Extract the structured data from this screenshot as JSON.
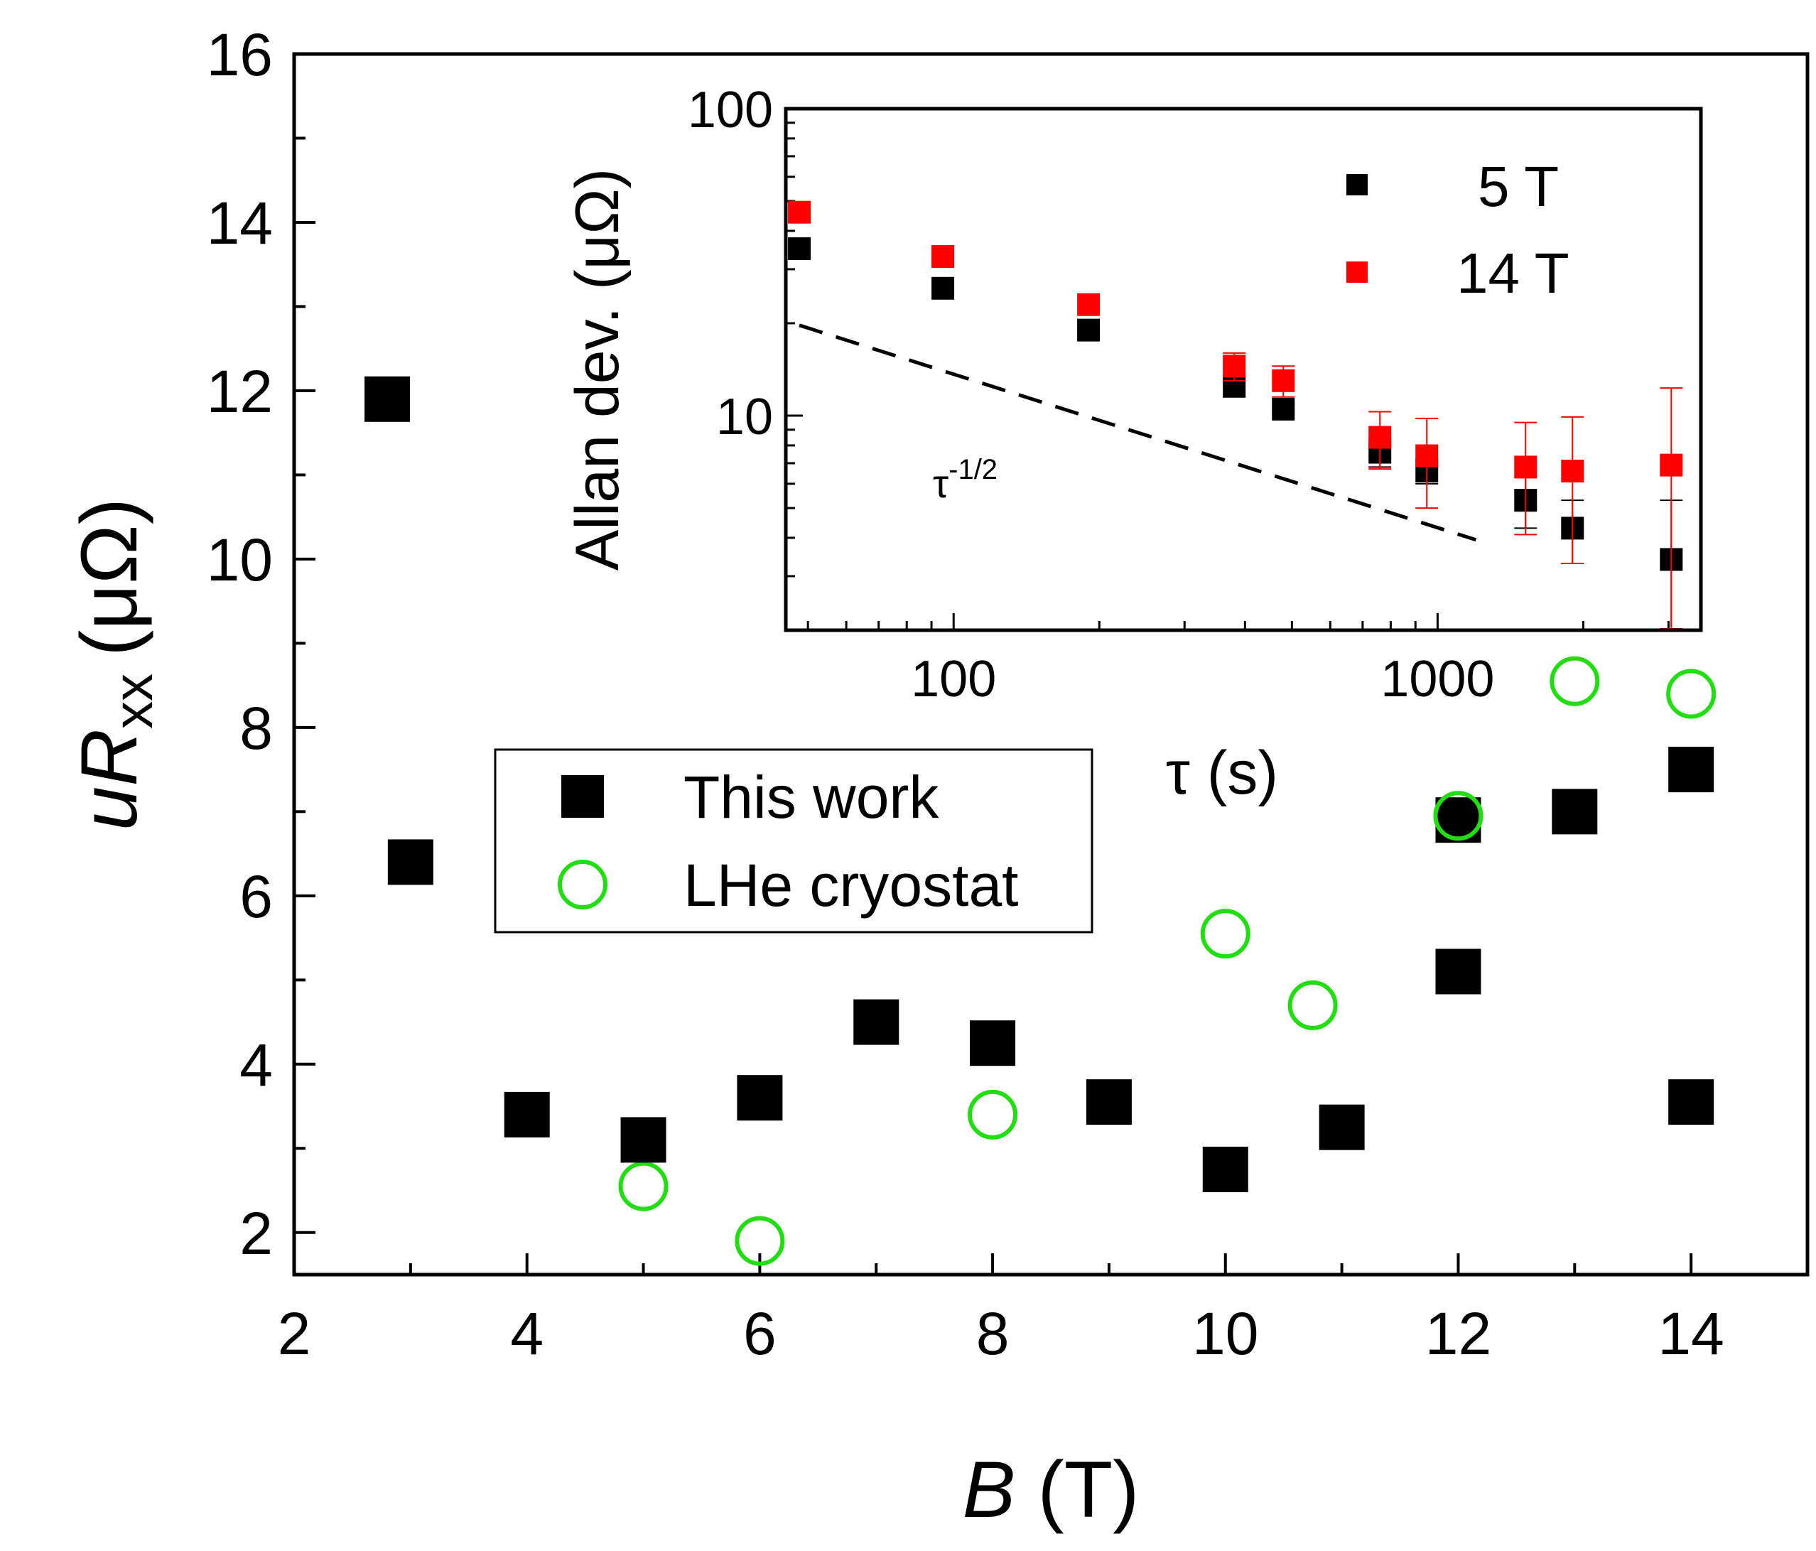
{
  "chart_data": [
    {
      "id": "main",
      "type": "scatter",
      "title": "",
      "xlabel": "B",
      "xlabel_unit": "(T)",
      "ylabel_main": "uR",
      "ylabel_sub": "xx",
      "ylabel_unit": "(μΩ)",
      "xlim": [
        2,
        15
      ],
      "ylim": [
        1.5,
        16
      ],
      "xticks": [
        2,
        4,
        6,
        8,
        10,
        12,
        14
      ],
      "yticks": [
        2,
        4,
        6,
        8,
        10,
        12,
        14,
        16
      ],
      "grid": false,
      "legend_position": "center-left",
      "series": [
        {
          "name": "This work",
          "marker": "filled-square",
          "color": "#000000",
          "points": [
            [
              2.8,
              11.9
            ],
            [
              3.0,
              6.4
            ],
            [
              4.0,
              3.4
            ],
            [
              5.0,
              3.1
            ],
            [
              6.0,
              3.6
            ],
            [
              7.0,
              4.5
            ],
            [
              8.0,
              4.25
            ],
            [
              9.0,
              3.55
            ],
            [
              10.0,
              2.75
            ],
            [
              11.0,
              3.25
            ],
            [
              12.0,
              5.1
            ],
            [
              12.0,
              6.9
            ],
            [
              13.0,
              7.0
            ],
            [
              14.0,
              7.5
            ],
            [
              14.0,
              3.55
            ]
          ]
        },
        {
          "name": "LHe cryostat",
          "marker": "open-circle",
          "color": "#22dd11",
          "points": [
            [
              5.0,
              2.55
            ],
            [
              6.0,
              1.9
            ],
            [
              8.0,
              3.4
            ],
            [
              10.0,
              5.55
            ],
            [
              10.75,
              4.7
            ],
            [
              12.0,
              6.95
            ],
            [
              13.0,
              8.55
            ],
            [
              14.0,
              8.4
            ]
          ]
        }
      ]
    },
    {
      "id": "inset",
      "type": "scatter",
      "scale": "log-log",
      "xlabel": "τ (s)",
      "ylabel": "Allan dev. (μΩ)",
      "xlim": [
        45,
        3500
      ],
      "ylim": [
        2,
        100
      ],
      "xticks": [
        100,
        1000
      ],
      "yticks": [
        10,
        100
      ],
      "grid": false,
      "legend_position": "top-right",
      "series": [
        {
          "name": "5 T",
          "marker": "filled-square",
          "color": "#000000",
          "points": [
            {
              "x": 48,
              "y": 35,
              "err": 0
            },
            {
              "x": 95,
              "y": 26,
              "err": 0
            },
            {
              "x": 190,
              "y": 19,
              "err": 0
            },
            {
              "x": 380,
              "y": 12.5,
              "err": 1
            },
            {
              "x": 480,
              "y": 10.5,
              "err": 0.4
            },
            {
              "x": 760,
              "y": 7.6,
              "err": 0.8
            },
            {
              "x": 950,
              "y": 6.6,
              "err": 0.6
            },
            {
              "x": 1520,
              "y": 5.3,
              "err": 1.0
            },
            {
              "x": 1900,
              "y": 4.3,
              "err": 1.0
            },
            {
              "x": 3040,
              "y": 3.4,
              "err": 1.9
            }
          ]
        },
        {
          "name": "14 T",
          "marker": "filled-square",
          "color": "#ff0000",
          "points": [
            {
              "x": 48,
              "y": 46,
              "err": 0
            },
            {
              "x": 95,
              "y": 33,
              "err": 0
            },
            {
              "x": 190,
              "y": 23,
              "err": 0
            },
            {
              "x": 380,
              "y": 14.5,
              "err": 1.5
            },
            {
              "x": 480,
              "y": 13,
              "err": 1.5
            },
            {
              "x": 760,
              "y": 8.5,
              "err": 1.8
            },
            {
              "x": 950,
              "y": 7.4,
              "err": 2.4
            },
            {
              "x": 1520,
              "y": 6.8,
              "err": 2.7
            },
            {
              "x": 1900,
              "y": 6.6,
              "err": 3.3
            },
            {
              "x": 3040,
              "y": 6.9,
              "err": 5.4
            }
          ]
        }
      ],
      "reference_line": {
        "label_base": "τ",
        "label_exp": "-1/2",
        "style": "dashed",
        "slope": -0.5,
        "from": [
          48,
          19.7
        ],
        "to": [
          1200,
          3.94
        ]
      }
    }
  ]
}
